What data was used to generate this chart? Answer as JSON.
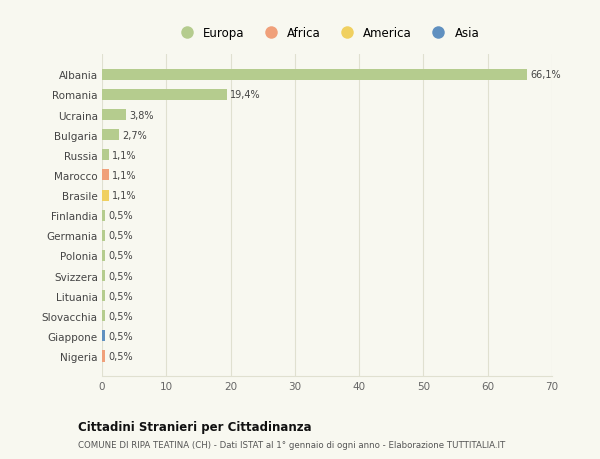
{
  "countries": [
    "Albania",
    "Romania",
    "Ucraina",
    "Bulgaria",
    "Russia",
    "Marocco",
    "Brasile",
    "Finlandia",
    "Germania",
    "Polonia",
    "Svizzera",
    "Lituania",
    "Slovacchia",
    "Giappone",
    "Nigeria"
  ],
  "values": [
    66.1,
    19.4,
    3.8,
    2.7,
    1.1,
    1.1,
    1.1,
    0.5,
    0.5,
    0.5,
    0.5,
    0.5,
    0.5,
    0.5,
    0.5
  ],
  "labels": [
    "66,1%",
    "19,4%",
    "3,8%",
    "2,7%",
    "1,1%",
    "1,1%",
    "1,1%",
    "0,5%",
    "0,5%",
    "0,5%",
    "0,5%",
    "0,5%",
    "0,5%",
    "0,5%",
    "0,5%"
  ],
  "continents": [
    "Europa",
    "Europa",
    "Europa",
    "Europa",
    "Europa",
    "Africa",
    "America",
    "Europa",
    "Europa",
    "Europa",
    "Europa",
    "Europa",
    "Europa",
    "Asia",
    "Africa"
  ],
  "colors": {
    "Europa": "#b5cc8e",
    "Africa": "#f0a07a",
    "America": "#f0d060",
    "Asia": "#6090c0"
  },
  "xlim": [
    0,
    70
  ],
  "xticks": [
    0,
    10,
    20,
    30,
    40,
    50,
    60,
    70
  ],
  "title": "Cittadini Stranieri per Cittadinanza",
  "subtitle": "COMUNE DI RIPA TEATINA (CH) - Dati ISTAT al 1° gennaio di ogni anno - Elaborazione TUTTITALIA.IT",
  "bg_color": "#f8f8f0",
  "grid_color": "#e0e0d0",
  "legend_order": [
    "Europa",
    "Africa",
    "America",
    "Asia"
  ]
}
